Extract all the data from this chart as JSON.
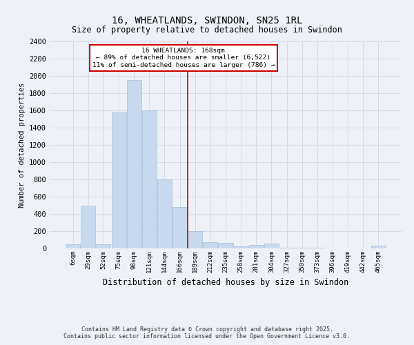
{
  "title": "16, WHEATLANDS, SWINDON, SN25 1RL",
  "subtitle": "Size of property relative to detached houses in Swindon",
  "xlabel": "Distribution of detached houses by size in Swindon",
  "ylabel": "Number of detached properties",
  "footer": "Contains HM Land Registry data © Crown copyright and database right 2025.\nContains public sector information licensed under the Open Government Licence v3.0.",
  "property_label": "16 WHEATLANDS: 168sqm",
  "annotation_line1": "← 89% of detached houses are smaller (6,522)",
  "annotation_line2": "11% of semi-detached houses are larger (786) →",
  "bar_color": "#c8d9ee",
  "bar_edge_color": "#aabdd8",
  "vline_color": "#cc0000",
  "annotation_box_edgecolor": "#cc0000",
  "background_color": "#eef2f8",
  "grid_color": "#d0d8e8",
  "categories": [
    "6sqm",
    "29sqm",
    "52sqm",
    "75sqm",
    "98sqm",
    "121sqm",
    "144sqm",
    "166sqm",
    "189sqm",
    "212sqm",
    "235sqm",
    "258sqm",
    "281sqm",
    "304sqm",
    "327sqm",
    "350sqm",
    "373sqm",
    "396sqm",
    "419sqm",
    "442sqm",
    "465sqm"
  ],
  "values": [
    50,
    500,
    50,
    1580,
    1950,
    1600,
    800,
    480,
    200,
    70,
    65,
    25,
    40,
    55,
    5,
    5,
    5,
    0,
    0,
    0,
    30
  ],
  "vline_x": 7.5,
  "ylim": [
    0,
    2400
  ],
  "yticks": [
    0,
    200,
    400,
    600,
    800,
    1000,
    1200,
    1400,
    1600,
    1800,
    2000,
    2200,
    2400
  ]
}
